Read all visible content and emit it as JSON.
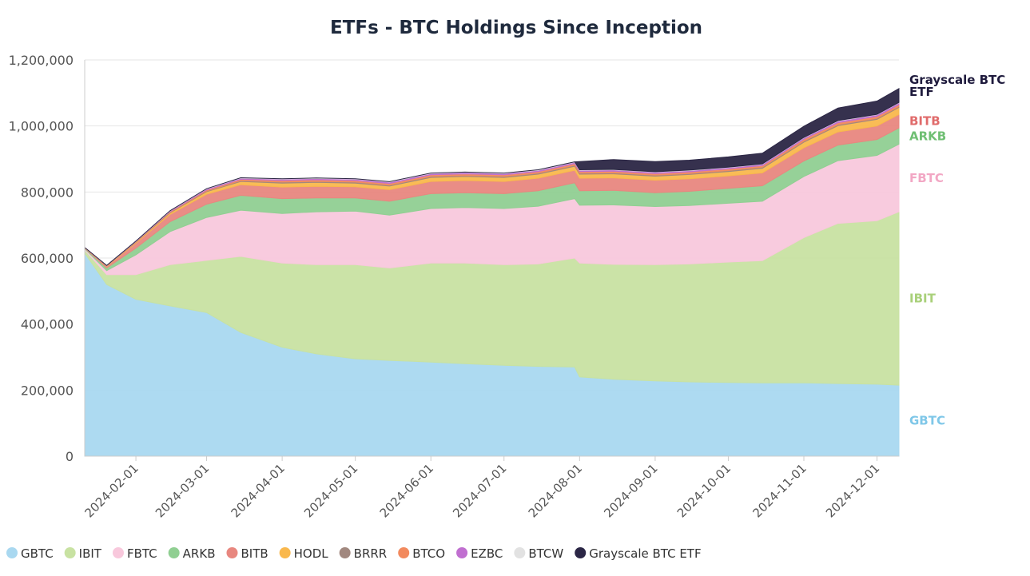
{
  "chart_data": {
    "type": "area",
    "stacked": true,
    "title": "ETFs - BTC Holdings Since Inception",
    "xlabel": "",
    "ylabel": "",
    "x_ticks": [
      "2024-02-01",
      "2024-03-01",
      "2024-04-01",
      "2024-05-01",
      "2024-06-01",
      "2024-07-01",
      "2024-08-01",
      "2024-09-01",
      "2024-10-01",
      "2024-11-01",
      "2024-12-01"
    ],
    "y_ticks": [
      0,
      200000,
      400000,
      600000,
      800000,
      1000000,
      1200000
    ],
    "y_tick_labels": [
      "0",
      "200,000",
      "400,000",
      "600,000",
      "800,000",
      "1,000,000",
      "1,200,000"
    ],
    "ylim": [
      0,
      1200000
    ],
    "grid": true,
    "x": [
      "2024-01-11",
      "2024-01-20",
      "2024-02-01",
      "2024-02-15",
      "2024-03-01",
      "2024-03-15",
      "2024-04-01",
      "2024-04-15",
      "2024-05-01",
      "2024-05-15",
      "2024-06-01",
      "2024-06-15",
      "2024-07-01",
      "2024-07-15",
      "2024-07-30",
      "2024-08-01",
      "2024-08-15",
      "2024-09-01",
      "2024-09-15",
      "2024-10-01",
      "2024-10-15",
      "2024-11-01",
      "2024-11-15",
      "2024-12-01",
      "2024-12-10"
    ],
    "series": [
      {
        "name": "GBTC",
        "color": "#a9d8f0",
        "values": [
          615000,
          520000,
          475000,
          455000,
          435000,
          375000,
          330000,
          310000,
          295000,
          290000,
          285000,
          280000,
          275000,
          272000,
          270000,
          240000,
          233000,
          228000,
          225000,
          223000,
          222000,
          222000,
          220000,
          218000,
          215000
        ]
      },
      {
        "name": "IBIT",
        "color": "#c8e2a2",
        "values": [
          10000,
          30000,
          75000,
          125000,
          158000,
          230000,
          255000,
          270000,
          285000,
          280000,
          300000,
          305000,
          305000,
          310000,
          330000,
          345000,
          348000,
          352000,
          357000,
          365000,
          370000,
          440000,
          485000,
          495000,
          525000
        ]
      },
      {
        "name": "FBTC",
        "color": "#f8c8dc",
        "values": [
          3000,
          12000,
          60000,
          100000,
          130000,
          140000,
          150000,
          160000,
          162000,
          160000,
          165000,
          168000,
          170000,
          175000,
          180000,
          175000,
          180000,
          176000,
          177000,
          178000,
          180000,
          185000,
          190000,
          198000,
          205000
        ]
      },
      {
        "name": "ARKB",
        "color": "#90cf92",
        "values": [
          2000,
          8000,
          20000,
          30000,
          40000,
          45000,
          45000,
          42000,
          40000,
          42000,
          45000,
          45000,
          45000,
          47000,
          48000,
          44000,
          44000,
          42000,
          43000,
          45000,
          47000,
          47000,
          47000,
          48000,
          49000
        ]
      },
      {
        "name": "BITB",
        "color": "#e8877f",
        "values": [
          1000,
          5000,
          15000,
          22000,
          30000,
          32000,
          35000,
          35000,
          34000,
          35000,
          37000,
          37000,
          37000,
          38000,
          38000,
          38000,
          38000,
          38000,
          38000,
          38000,
          39000,
          40000,
          40000,
          41000,
          41000
        ]
      },
      {
        "name": "HODL",
        "color": "#f9b84d",
        "values": [
          500,
          1000,
          3000,
          5000,
          8000,
          10000,
          12000,
          12000,
          11000,
          11000,
          12000,
          12000,
          12000,
          12000,
          12000,
          12000,
          12000,
          12000,
          13000,
          13000,
          14000,
          17000,
          19000,
          20000,
          21000
        ]
      },
      {
        "name": "BRRR",
        "color": "#a1887f",
        "values": [
          200,
          500,
          1000,
          1500,
          2000,
          2500,
          3000,
          3000,
          3000,
          3000,
          3000,
          3000,
          3000,
          3000,
          3000,
          3000,
          3000,
          3000,
          3000,
          3000,
          3000,
          3000,
          3000,
          3000,
          3000
        ]
      },
      {
        "name": "BTCO",
        "color": "#f28a5e",
        "values": [
          200,
          500,
          1000,
          2000,
          3000,
          4000,
          5000,
          5000,
          5000,
          5000,
          5000,
          5000,
          5000,
          5000,
          5000,
          5000,
          5000,
          5000,
          5000,
          5000,
          5000,
          6000,
          6000,
          6000,
          6000
        ]
      },
      {
        "name": "EZBC",
        "color": "#c06fd0",
        "values": [
          100,
          300,
          1000,
          2000,
          3000,
          3500,
          4000,
          4000,
          4000,
          4000,
          4000,
          4000,
          4000,
          4000,
          4000,
          4000,
          4000,
          4000,
          4000,
          4000,
          4000,
          4000,
          5000,
          5000,
          5000
        ]
      },
      {
        "name": "BTCW",
        "color": "#e2e2e2",
        "values": [
          100,
          200,
          500,
          800,
          1000,
          1200,
          1300,
          1300,
          1300,
          1300,
          1300,
          1300,
          1300,
          1300,
          1300,
          1300,
          1300,
          1300,
          1300,
          1300,
          1300,
          1300,
          1300,
          1300,
          1300
        ]
      },
      {
        "name": "Grayscale BTC ETF",
        "color": "#2b2645",
        "values": [
          0,
          0,
          0,
          0,
          0,
          0,
          0,
          0,
          0,
          0,
          0,
          0,
          0,
          0,
          0,
          25000,
          30000,
          31000,
          30000,
          31000,
          32000,
          34000,
          38000,
          40000,
          42000
        ]
      }
    ],
    "end_labels": [
      {
        "text": "Grayscale BTC ETF",
        "color": "#1f1b3d"
      },
      {
        "text": "BITB",
        "color": "#e06b6b"
      },
      {
        "text": "ARKB",
        "color": "#6fbf73"
      },
      {
        "text": "FBTC",
        "color": "#f2a7c4"
      },
      {
        "text": "IBIT",
        "color": "#a9d07a"
      },
      {
        "text": "GBTC",
        "color": "#7fc7e8"
      }
    ],
    "legend": {
      "placement": "bottom-left",
      "items": [
        "GBTC",
        "IBIT",
        "FBTC",
        "ARKB",
        "BITB",
        "HODL",
        "BRRR",
        "BTCO",
        "EZBC",
        "BTCW",
        "Grayscale BTC ETF"
      ]
    }
  }
}
